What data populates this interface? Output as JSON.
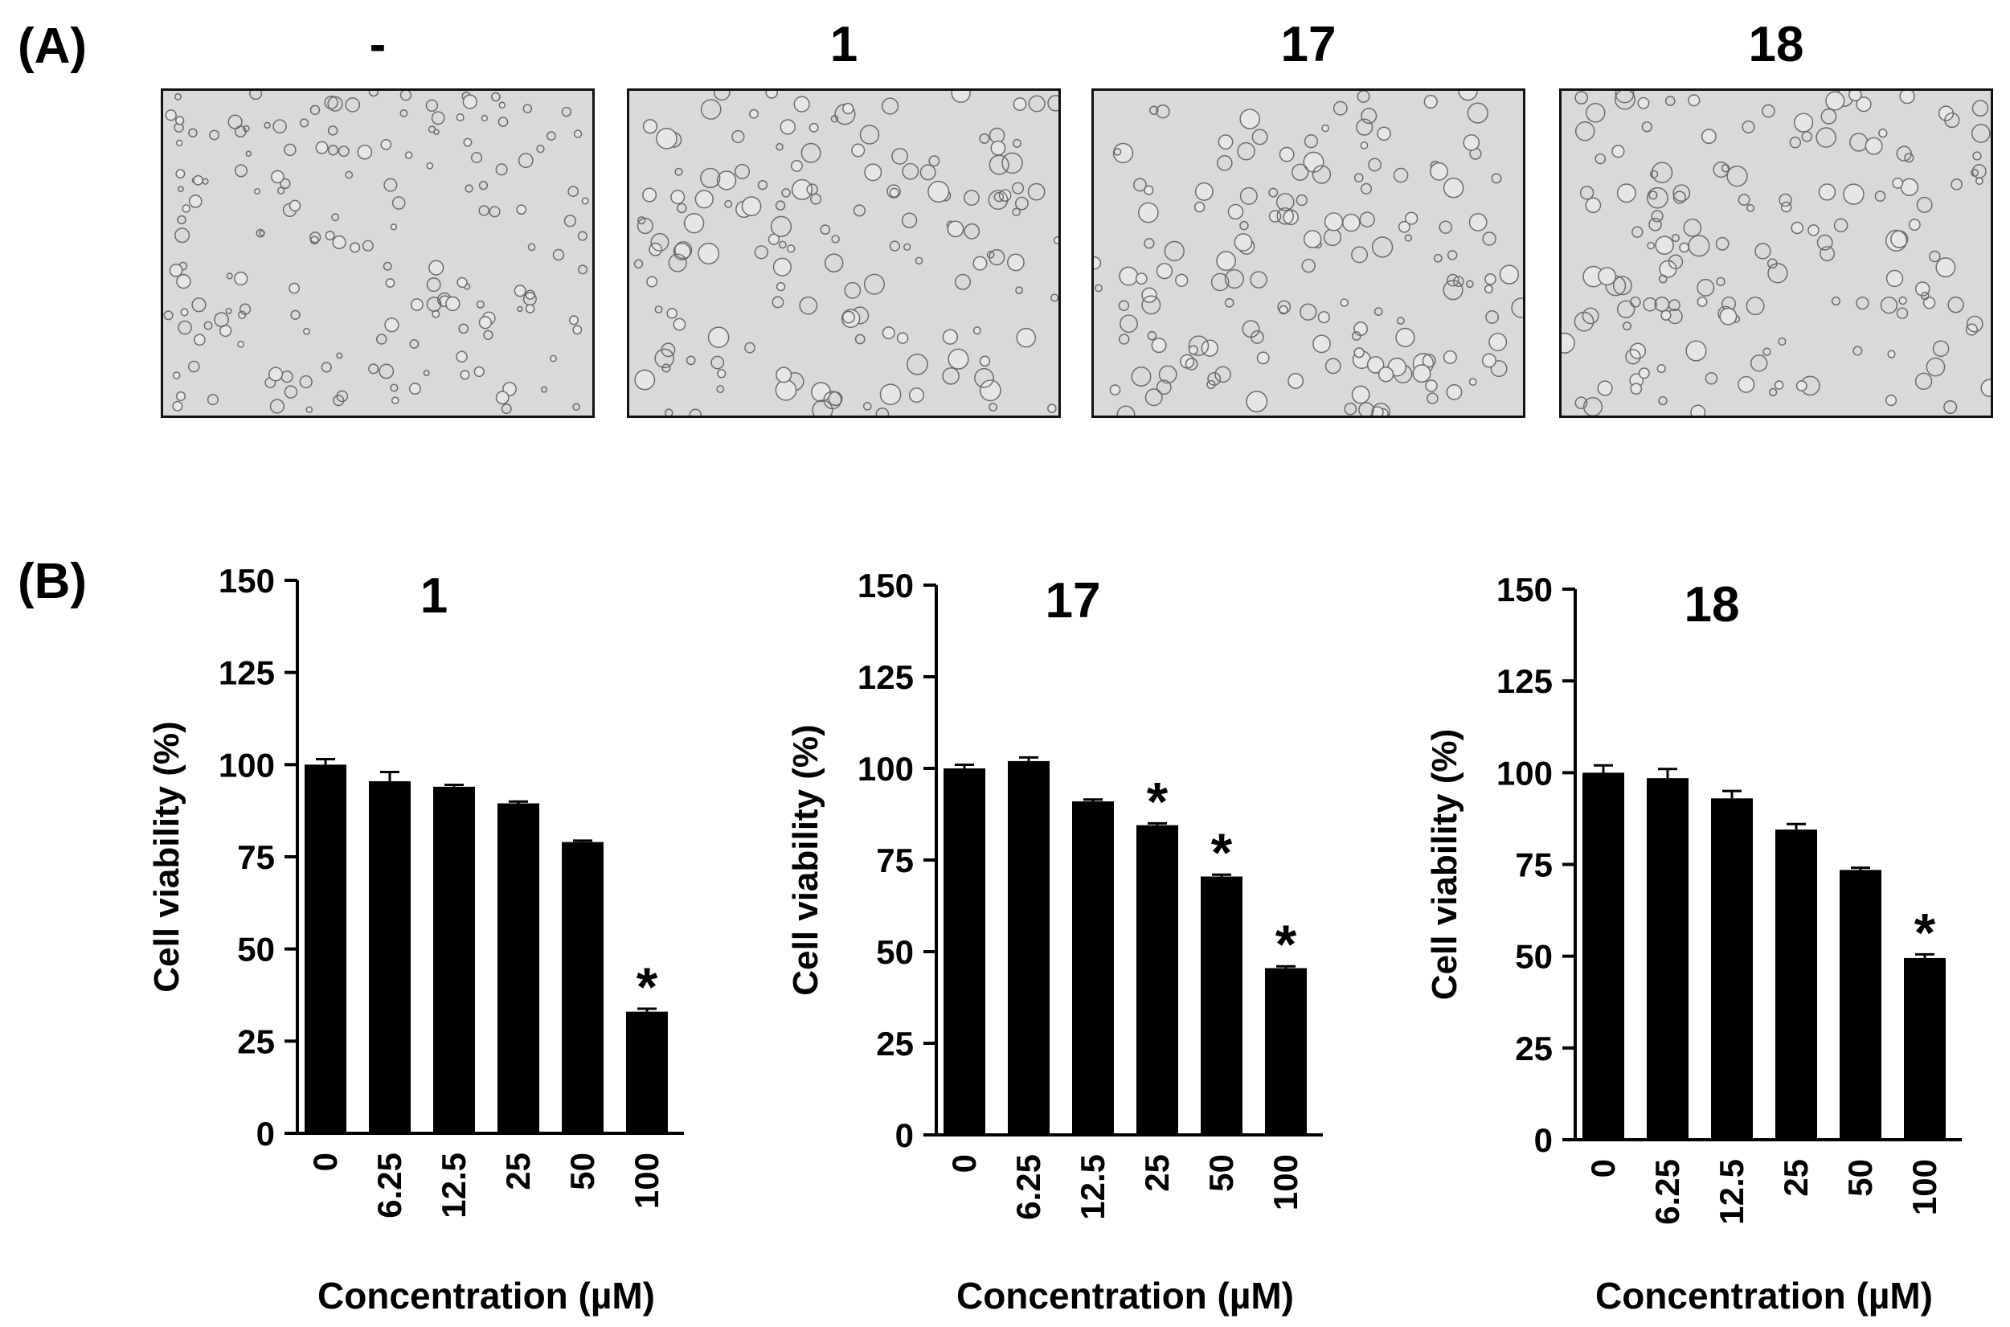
{
  "panel_a": {
    "label": "(A)",
    "images": [
      {
        "title": "-"
      },
      {
        "title": "1"
      },
      {
        "title": "17"
      },
      {
        "title": "18"
      }
    ]
  },
  "panel_b": {
    "label": "(B)"
  },
  "colors": {
    "bar": "#000000",
    "micrograph_background": "#d9d9d9",
    "cell_outline": "#6b6b6b"
  },
  "chart_data": [
    {
      "type": "bar",
      "title": "1",
      "xlabel": "Concentration (µM)",
      "ylabel": "Cell viability  (%)",
      "ylim": [
        0,
        150
      ],
      "yticks": [
        "0",
        "25",
        "50",
        "75",
        "100",
        "125",
        "150"
      ],
      "categories": [
        "0",
        "6.25",
        "12.5",
        "25",
        "50",
        "100"
      ],
      "values": [
        100,
        95.5,
        94,
        89.5,
        79,
        33
      ],
      "errors": [
        1.5,
        2.5,
        0.5,
        0.5,
        0.4,
        0.8
      ],
      "annotations": [
        "",
        "",
        "",
        "",
        "",
        "*"
      ]
    },
    {
      "type": "bar",
      "title": "17",
      "xlabel": "Concentration (µM)",
      "ylabel": "Cell viability  (%)",
      "ylim": [
        0,
        150
      ],
      "yticks": [
        "0",
        "25",
        "50",
        "75",
        "100",
        "125",
        "150"
      ],
      "categories": [
        "0",
        "6.25",
        "12.5",
        "25",
        "50",
        "100"
      ],
      "values": [
        100,
        102,
        91,
        84.5,
        70.5,
        45.5
      ],
      "errors": [
        1,
        1,
        0.5,
        0.5,
        0.5,
        0.5
      ],
      "annotations": [
        "",
        "",
        "",
        "*",
        "*",
        "*"
      ]
    },
    {
      "type": "bar",
      "title": "18",
      "xlabel": "Concentration (µM)",
      "ylabel": "Cell viability  (%)",
      "ylim": [
        0,
        150
      ],
      "yticks": [
        "0",
        "25",
        "50",
        "75",
        "100",
        "125",
        "150"
      ],
      "categories": [
        "0",
        "6.25",
        "12.5",
        "25",
        "50",
        "100"
      ],
      "values": [
        100,
        98.5,
        93,
        84.5,
        73.5,
        49.5
      ],
      "errors": [
        2,
        2.5,
        2,
        1.5,
        0.6,
        1
      ],
      "annotations": [
        "",
        "",
        "",
        "",
        "",
        "*"
      ]
    }
  ]
}
